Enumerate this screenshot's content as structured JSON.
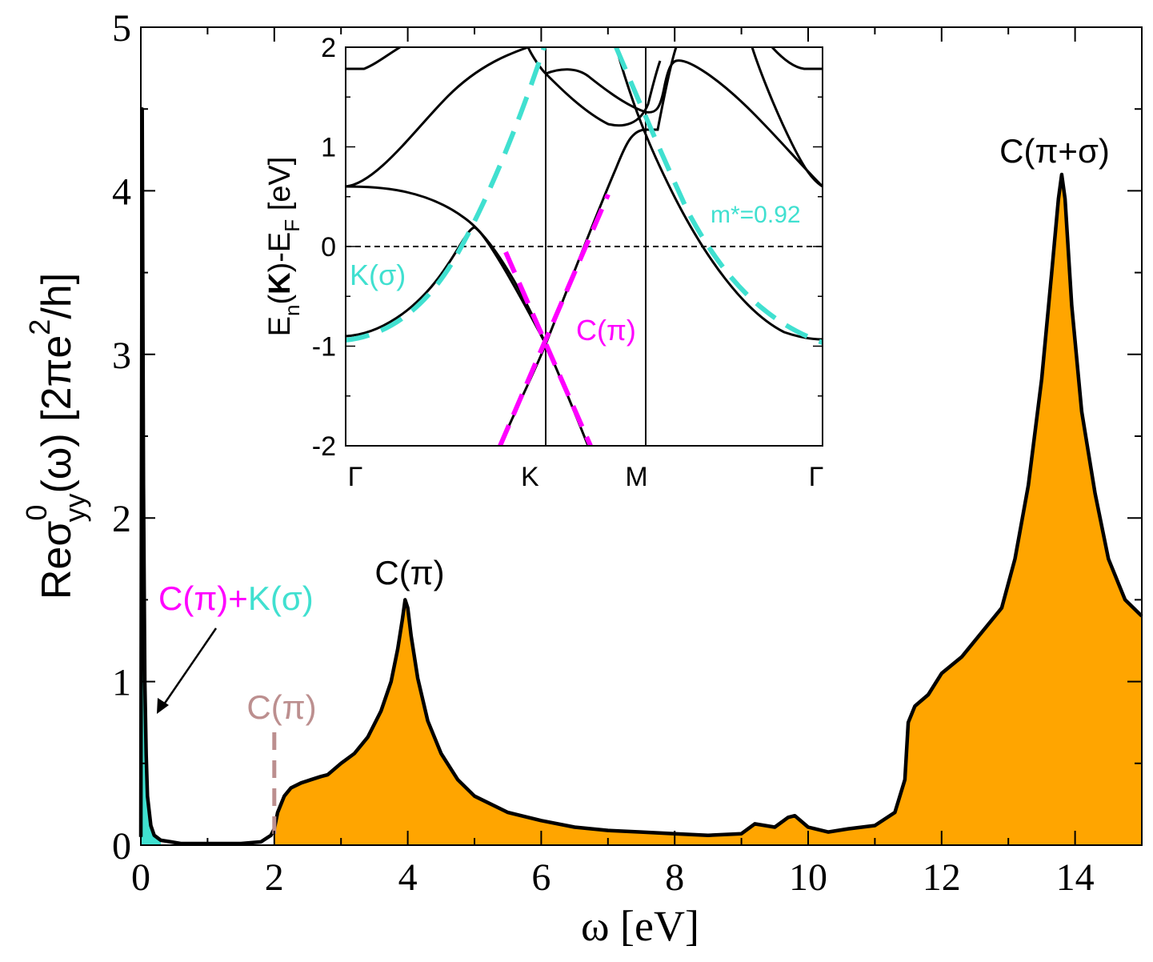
{
  "colors": {
    "fill_main": "#FFA500",
    "fill_drude": "#40E0D0",
    "curve": "#000000",
    "cyan": "#40E0D0",
    "magenta": "#FF00FF",
    "taupe": "#BC8F8F"
  },
  "chart_data": [
    {
      "name": "main",
      "type": "area",
      "xlabel": "ω [eV]",
      "ylabel": "Reσ⁰yy(ω) [2πe²/h]",
      "xlim": [
        0,
        15
      ],
      "ylim": [
        0,
        5
      ],
      "xticks": [
        0,
        2,
        4,
        6,
        8,
        10,
        12,
        14
      ],
      "yticks": [
        0,
        1,
        2,
        3,
        4,
        5
      ],
      "xtick_labels": [
        "0",
        "2",
        "4",
        "6",
        "8",
        "10",
        "12",
        "14"
      ],
      "ytick_labels": [
        "0",
        "1",
        "2",
        "3",
        "4",
        "5"
      ],
      "series": [
        {
          "name": "Reσ⁰yy(ω)",
          "x": [
            0.0,
            0.02,
            0.04,
            0.06,
            0.08,
            0.1,
            0.15,
            0.2,
            0.3,
            0.45,
            0.6,
            1.0,
            1.5,
            1.8,
            1.95,
            2.0,
            2.05,
            2.15,
            2.25,
            2.4,
            2.55,
            2.7,
            2.8,
            3.0,
            3.2,
            3.4,
            3.6,
            3.75,
            3.85,
            3.92,
            3.96,
            4.0,
            4.05,
            4.15,
            4.3,
            4.5,
            4.75,
            5.0,
            5.5,
            6.0,
            6.5,
            7.0,
            7.5,
            8.0,
            8.5,
            9.0,
            9.2,
            9.5,
            9.7,
            9.8,
            10.0,
            10.3,
            10.6,
            11.0,
            11.3,
            11.45,
            11.5,
            11.6,
            11.8,
            12.0,
            12.3,
            12.6,
            12.9,
            13.1,
            13.3,
            13.5,
            13.65,
            13.75,
            13.8,
            13.85,
            13.95,
            14.1,
            14.3,
            14.5,
            14.75,
            15.0
          ],
          "y": [
            0.05,
            4.5,
            2.2,
            1.0,
            0.55,
            0.3,
            0.12,
            0.06,
            0.03,
            0.02,
            0.01,
            0.01,
            0.01,
            0.02,
            0.06,
            0.1,
            0.2,
            0.3,
            0.35,
            0.38,
            0.4,
            0.42,
            0.43,
            0.5,
            0.56,
            0.66,
            0.82,
            1.0,
            1.2,
            1.38,
            1.5,
            1.45,
            1.28,
            1.02,
            0.76,
            0.56,
            0.4,
            0.3,
            0.2,
            0.15,
            0.11,
            0.09,
            0.08,
            0.07,
            0.06,
            0.07,
            0.13,
            0.11,
            0.17,
            0.18,
            0.11,
            0.08,
            0.1,
            0.12,
            0.2,
            0.4,
            0.75,
            0.85,
            0.92,
            1.05,
            1.15,
            1.3,
            1.45,
            1.75,
            2.2,
            2.85,
            3.5,
            3.95,
            4.1,
            3.95,
            3.3,
            2.65,
            2.15,
            1.75,
            1.5,
            1.4
          ]
        }
      ],
      "annotations": [
        {
          "text": "C(π)",
          "x": 4.0,
          "y": 1.6
        },
        {
          "text": "C(π+σ)",
          "x": 13.8,
          "y": 4.2
        },
        {
          "text": "C(π)",
          "x": 2.0,
          "y": 0.8
        },
        {
          "text_a": "C(π)+",
          "text_b": "K(σ)",
          "arrow_to_x": 0.22,
          "arrow_to_y": 0.75
        }
      ],
      "gap_marker_x": 2.0
    },
    {
      "name": "inset_bands",
      "type": "line",
      "ylabel": "En(K)-EF [eV]",
      "ylim": [
        -2,
        2
      ],
      "yticks": [
        -2,
        -1,
        0,
        1,
        2
      ],
      "ytick_labels": [
        "-2",
        "-1",
        "0",
        "1",
        "2"
      ],
      "xtick_labels": [
        "Γ",
        "K",
        "M",
        "Γ"
      ],
      "k_path": [
        0.0,
        1.0,
        1.5,
        2.5
      ],
      "fermi_level": 0,
      "annotations": [
        {
          "text": "K(σ)"
        },
        {
          "text": "C(π)"
        },
        {
          "text": "m*=0.92"
        }
      ]
    }
  ]
}
